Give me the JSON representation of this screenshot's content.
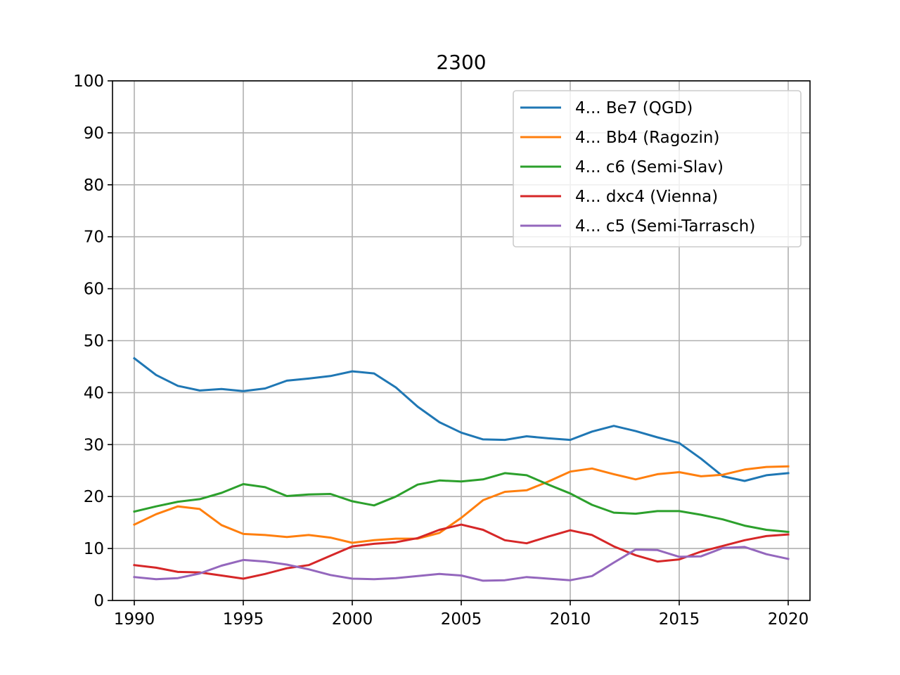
{
  "chart_data": {
    "type": "line",
    "title": "2300",
    "xlabel": "",
    "ylabel": "",
    "xlim": [
      1989,
      2021
    ],
    "ylim": [
      0,
      100
    ],
    "x_ticks": [
      1990,
      1995,
      2000,
      2005,
      2010,
      2015,
      2020
    ],
    "y_ticks": [
      0,
      10,
      20,
      30,
      40,
      50,
      60,
      70,
      80,
      90,
      100
    ],
    "grid": true,
    "legend_position": "top-right",
    "x": [
      1990,
      1991,
      1992,
      1993,
      1994,
      1995,
      1996,
      1997,
      1998,
      1999,
      2000,
      2001,
      2002,
      2003,
      2004,
      2005,
      2006,
      2007,
      2008,
      2009,
      2010,
      2011,
      2012,
      2013,
      2014,
      2015,
      2016,
      2017,
      2018,
      2019,
      2020
    ],
    "series": [
      {
        "name": "4... Be7 (QGD)",
        "color": "#1f77b4",
        "values": [
          46.6,
          43.4,
          41.3,
          40.4,
          40.7,
          40.3,
          40.8,
          42.3,
          42.7,
          43.2,
          44.1,
          43.7,
          41.0,
          37.3,
          34.3,
          32.3,
          31.0,
          30.9,
          31.6,
          31.2,
          30.9,
          32.5,
          33.6,
          32.6,
          31.4,
          30.3,
          27.3,
          23.9,
          23.0,
          24.1,
          24.5
        ]
      },
      {
        "name": "4... Bb4 (Ragozin)",
        "color": "#ff7f0e",
        "values": [
          14.6,
          16.6,
          18.1,
          17.6,
          14.5,
          12.8,
          12.6,
          12.2,
          12.6,
          12.1,
          11.1,
          11.6,
          11.9,
          11.9,
          13.0,
          15.9,
          19.3,
          20.9,
          21.2,
          22.9,
          24.8,
          25.4,
          24.3,
          23.3,
          24.3,
          24.7,
          23.9,
          24.2,
          25.2,
          25.7,
          25.8
        ]
      },
      {
        "name": "4... c6 (Semi-Slav)",
        "color": "#2ca02c",
        "values": [
          17.1,
          18.1,
          19.0,
          19.5,
          20.7,
          22.4,
          21.8,
          20.1,
          20.4,
          20.5,
          19.1,
          18.3,
          20.0,
          22.3,
          23.1,
          22.9,
          23.3,
          24.5,
          24.1,
          22.3,
          20.6,
          18.4,
          16.9,
          16.7,
          17.2,
          17.2,
          16.5,
          15.6,
          14.4,
          13.6,
          13.2
        ]
      },
      {
        "name": "4... dxc4 (Vienna)",
        "color": "#d62728",
        "values": [
          6.8,
          6.3,
          5.5,
          5.4,
          4.8,
          4.2,
          5.1,
          6.2,
          6.8,
          8.6,
          10.4,
          10.9,
          11.2,
          12.0,
          13.6,
          14.6,
          13.6,
          11.6,
          11.0,
          12.3,
          13.5,
          12.6,
          10.4,
          8.7,
          7.5,
          7.9,
          9.4,
          10.5,
          11.6,
          12.4,
          12.7
        ]
      },
      {
        "name": "4... c5 (Semi-Tarrasch)",
        "color": "#9467bd",
        "values": [
          4.5,
          4.1,
          4.3,
          5.2,
          6.7,
          7.8,
          7.5,
          6.9,
          6.0,
          4.9,
          4.2,
          4.1,
          4.3,
          4.7,
          5.1,
          4.8,
          3.8,
          3.9,
          4.5,
          4.2,
          3.9,
          4.7,
          7.3,
          9.8,
          9.7,
          8.4,
          8.5,
          10.1,
          10.3,
          8.9,
          8.0
        ]
      }
    ]
  }
}
